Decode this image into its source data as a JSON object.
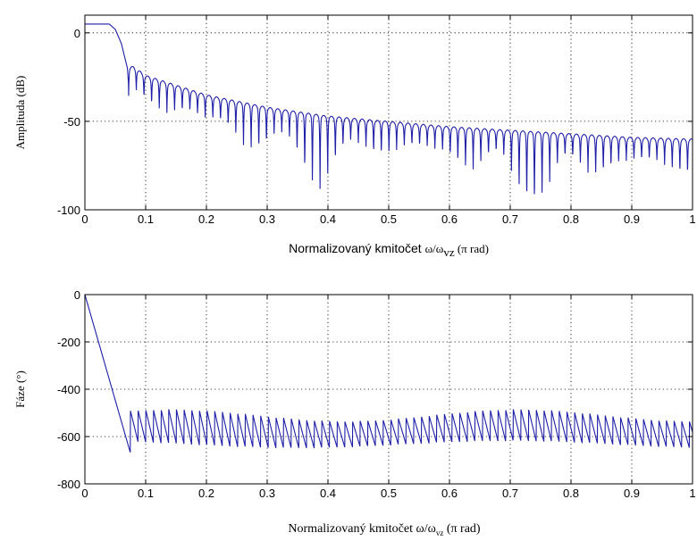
{
  "chart_data": [
    {
      "type": "line",
      "xlim": [
        0,
        1
      ],
      "ylim": [
        -100,
        10
      ],
      "xticks": [
        "0",
        "0.1",
        "0.2",
        "0.3",
        "0.4",
        "0.5",
        "0.6",
        "0.7",
        "0.8",
        "0.9",
        "1"
      ],
      "yticks": [
        "0",
        "-50",
        "-100"
      ],
      "ylabel": "Amplituda  (dB)",
      "xlabel": {
        "text": "Normalizovaný kmitočet  ",
        "symbol": "ω/ω",
        "sub": "vz",
        "unit": "(π rad)"
      },
      "grid": true,
      "series": [
        {
          "color": "#1f1fa8",
          "description_points": {
            "x": [
              0,
              0.04,
              0.05,
              0.06,
              0.07,
              0.075,
              0.08,
              0.1,
              0.2,
              0.3,
              0.4,
              0.5,
              0.6,
              0.7,
              0.8,
              0.9,
              1.0
            ],
            "y": [
              5,
              5,
              2,
              -6,
              -20,
              -45,
              -22,
              -27,
              -38,
              -45,
              -50,
              -53,
              -56,
              -58,
              -60,
              -62,
              -63
            ]
          }
        }
      ]
    },
    {
      "type": "line",
      "xlim": [
        0,
        1
      ],
      "ylim": [
        -800,
        0
      ],
      "xticks": [
        "0",
        "0.1",
        "0.2",
        "0.3",
        "0.4",
        "0.5",
        "0.6",
        "0.7",
        "0.8",
        "0.9",
        "1"
      ],
      "yticks": [
        "0",
        "-200",
        "-400",
        "-600",
        "-800"
      ],
      "ylabel": "Fáze  (°)",
      "xlabel": {
        "text": "Normalizovaný kmitočet  ",
        "symbol": "ω/ω",
        "sub": "vz",
        "unit": "(π rad)"
      },
      "grid": true,
      "series": [
        {
          "color": "#1f1fa8",
          "description_points": {
            "x": [
              0,
              0.03,
              0.06,
              0.075,
              0.08,
              0.1,
              0.3,
              0.5,
              0.7,
              0.9,
              1.0
            ],
            "y": [
              0,
              -260,
              -540,
              -670,
              -520,
              -600,
              -570,
              -580,
              -590,
              -580,
              -560
            ]
          }
        }
      ]
    }
  ]
}
